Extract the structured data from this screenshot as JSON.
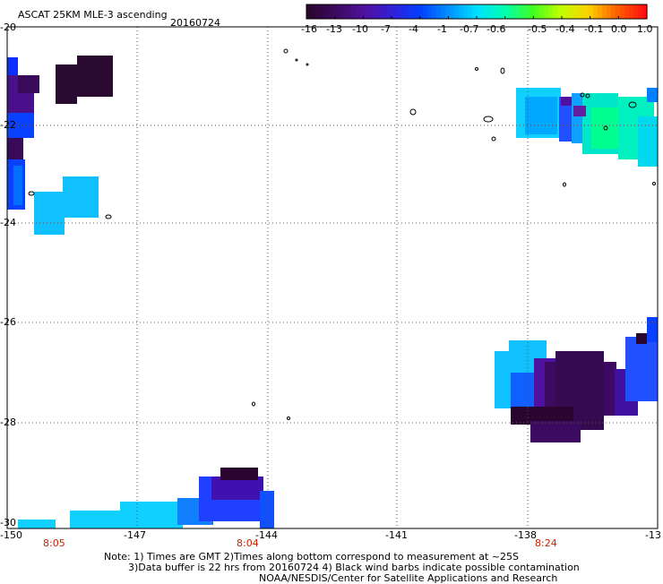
{
  "header": {
    "title": "ASCAT 25KM MLE-3 ascending",
    "date": "20160724"
  },
  "colorbar": {
    "labels": [
      "-16",
      "-13",
      "-10",
      "-7",
      "-4",
      "-1",
      "-0.7",
      "-0.6",
      "-0.5",
      "-0.4",
      "-0.1",
      "0.0",
      "1.0"
    ],
    "colors": [
      "#2a0530",
      "#3c0a60",
      "#5010a0",
      "#3020d8",
      "#0040ff",
      "#0090ff",
      "#00e0ff",
      "#00ffb0",
      "#40ff20",
      "#c0ff00",
      "#ffd000",
      "#ff6000",
      "#ff1010"
    ]
  },
  "map": {
    "lat_labels": [
      "-20",
      "-22",
      "-24",
      "-26",
      "-28",
      "-30"
    ],
    "lon_labels": [
      "-150",
      "-147",
      "-144",
      "-141",
      "-138",
      "-13"
    ],
    "time_labels": [
      "8:05",
      "8:04",
      "8:24"
    ],
    "lat_range": [
      -30,
      -20
    ],
    "lon_range": [
      -150,
      -135
    ]
  },
  "notes": {
    "line1": "Note: 1) Times are GMT 2)Times along bottom correspond to measurement at ~25S",
    "line2": "3)Data buffer is 22 hrs from 20160724 4) Black wind barbs indicate possible contamination",
    "line3": "NOAA/NESDIS/Center for Satellite Applications and Research"
  }
}
